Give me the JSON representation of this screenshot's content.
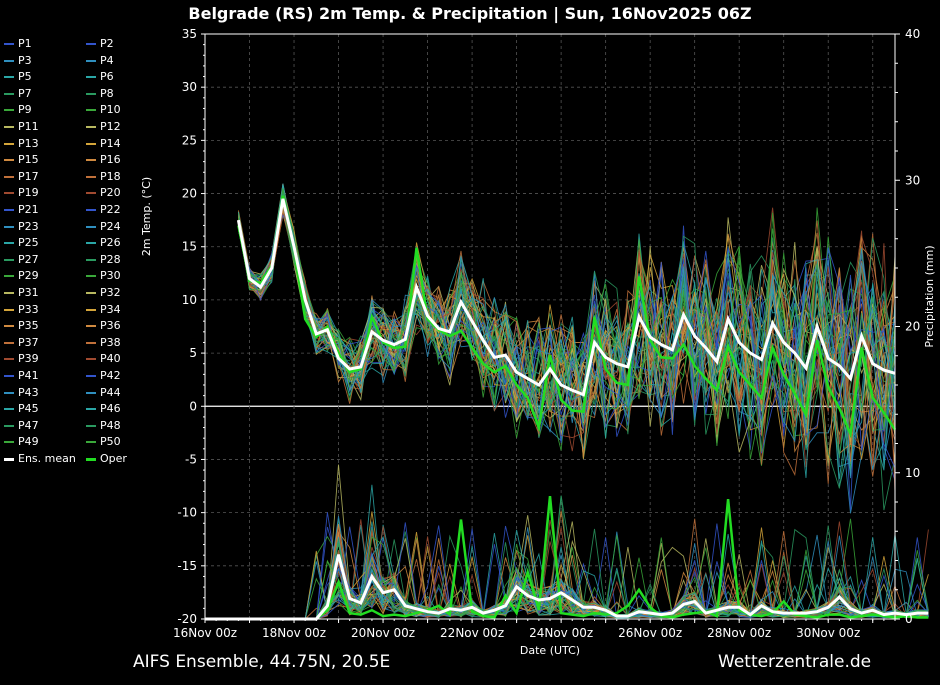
{
  "title": "Belgrade  (RS)  2m Temp. & Precipitation | Sun, 16Nov2025 06Z",
  "footer": {
    "model": "AIFS Ensemble, 44.75N, 20.5E",
    "source": "Wetterzentrale.de"
  },
  "colors": {
    "background": "#000000",
    "ens_mean": "#ffffff",
    "oper": "#22dd22",
    "zero_line": "#ffffff",
    "grid": "#555555"
  },
  "legend": {
    "members": [
      "P1",
      "P2",
      "P3",
      "P4",
      "P5",
      "P6",
      "P7",
      "P8",
      "P9",
      "P10",
      "P11",
      "P12",
      "P13",
      "P14",
      "P15",
      "P16",
      "P17",
      "P18",
      "P19",
      "P20",
      "P21",
      "P22",
      "P23",
      "P24",
      "P25",
      "P26",
      "P27",
      "P28",
      "P29",
      "P30",
      "P31",
      "P32",
      "P33",
      "P34",
      "P35",
      "P36",
      "P37",
      "P38",
      "P39",
      "P40",
      "P41",
      "P42",
      "P43",
      "P44",
      "P45",
      "P46",
      "P47",
      "P48",
      "P49",
      "P50"
    ],
    "member_colors": [
      "#3355cc",
      "#3355cc",
      "#2f8fbf",
      "#2f8fbf",
      "#2aa6a6",
      "#2aa6a6",
      "#2a9a60",
      "#2a9a60",
      "#3aa83a",
      "#3aa83a",
      "#b8b860",
      "#b8b860",
      "#d4a53a",
      "#d4a53a",
      "#d08a40",
      "#d08a40",
      "#c0703a",
      "#c0703a",
      "#a04a30",
      "#a04a30",
      "#3355cc",
      "#3355cc",
      "#2f8fbf",
      "#2f8fbf",
      "#2aa6a6",
      "#2aa6a6",
      "#2a9a60",
      "#2a9a60",
      "#3aa83a",
      "#3aa83a",
      "#b8b860",
      "#b8b860",
      "#d4a53a",
      "#d4a53a",
      "#d08a40",
      "#d08a40",
      "#c0703a",
      "#c0703a",
      "#a04a30",
      "#a04a30",
      "#3355cc",
      "#3355cc",
      "#2f8fbf",
      "#2f8fbf",
      "#2aa6a6",
      "#2aa6a6",
      "#2a9a60",
      "#2a9a60",
      "#3aa83a",
      "#3aa83a"
    ],
    "mean_label": "Ens. mean",
    "oper_label": "Oper"
  },
  "chart_data": {
    "type": "line",
    "title": "Belgrade  (RS)  2m Temp. & Precipitation | Sun, 16Nov2025 06Z",
    "xlabel": "Date (UTC)",
    "ylabel_left": "2m Temp. (°C)",
    "ylabel_right": "Precipitation (mm)",
    "ylim_left": [
      -20,
      35
    ],
    "ylim_right": [
      0,
      40
    ],
    "yticks_left": [
      "-20",
      "-15",
      "-10",
      "-5",
      "0",
      "5",
      "10",
      "15",
      "20",
      "25",
      "30",
      "35"
    ],
    "yticks_right": [
      "0",
      "10",
      "20",
      "30",
      "40"
    ],
    "x_hours_range": [
      0,
      372
    ],
    "x_step_hours": 6,
    "xtick_labels": [
      "16Nov 00z",
      "18Nov 00z",
      "20Nov 00z",
      "22Nov 00z",
      "24Nov 00z",
      "26Nov 00z",
      "28Nov 00z",
      "30Nov 00z"
    ],
    "grid": true,
    "series": [
      {
        "name": "Ens. mean 2m Temp.",
        "axis": "left",
        "start_hour": 18,
        "values": [
          17.5,
          12,
          11.2,
          13,
          19.5,
          15,
          10,
          6.8,
          7.2,
          4.5,
          3.5,
          3.7,
          7,
          6.2,
          5.8,
          6.3,
          11.2,
          8.5,
          7.3,
          7,
          9.8,
          8,
          6.2,
          4.6,
          4.8,
          3.2,
          2.6,
          2,
          3.5,
          2,
          1.5,
          1.1,
          6,
          4.6,
          4,
          3.7,
          8.4,
          6.5,
          5.8,
          5.3,
          8.6,
          6.6,
          5.5,
          4.2,
          8.2,
          6,
          5,
          4.4,
          7.8,
          6,
          5,
          3.6,
          7.5,
          4.5,
          3.8,
          2.6,
          6.6,
          4,
          3.4,
          3.1
        ]
      },
      {
        "name": "Oper 2m Temp.",
        "axis": "left",
        "start_hour": 18,
        "values": [
          17,
          11.8,
          11.6,
          13.2,
          19.8,
          14.8,
          8.2,
          6.5,
          7.5,
          5,
          3.2,
          3.5,
          8.4,
          6,
          5.5,
          5.6,
          14.9,
          8.2,
          7.2,
          6.6,
          7.1,
          5.5,
          4,
          3.2,
          3.8,
          2,
          0.8,
          -2,
          4.8,
          0.6,
          -0.4,
          -0.5,
          8.4,
          3.5,
          2.2,
          2,
          12.2,
          6.2,
          4.6,
          4.5,
          5.8,
          3.8,
          2.6,
          1.5,
          5.6,
          3.2,
          2,
          0.8,
          5.5,
          3,
          1.2,
          -0.8,
          6.2,
          1.8,
          -0.2,
          -2.6,
          5.5,
          0.8,
          -0.6,
          -2.2
        ]
      },
      {
        "name": "Ens. mean Precipitation",
        "axis": "right",
        "start_hour": 0,
        "values": [
          0,
          0,
          0,
          0,
          0,
          0,
          0,
          0,
          0,
          0,
          0,
          0.9,
          4.4,
          1.4,
          1.1,
          2.9,
          1.8,
          2,
          0.9,
          0.7,
          0.5,
          0.4,
          0.7,
          0.6,
          0.8,
          0.4,
          0.6,
          0.9,
          2.2,
          1.6,
          1.3,
          1.4,
          1.8,
          1.3,
          0.8,
          0.8,
          0.6,
          0.2,
          0.2,
          0.5,
          0.4,
          0.3,
          0.4,
          1,
          1.2,
          0.4,
          0.6,
          0.8,
          0.8,
          0.3,
          0.9,
          0.5,
          0.4,
          0.4,
          0.4,
          0.5,
          0.8,
          1.5,
          0.7,
          0.4,
          0.6,
          0.3,
          0.4,
          0.3,
          0.4,
          0.4
        ]
      },
      {
        "name": "Oper Precipitation",
        "axis": "right",
        "start_hour": 0,
        "values": [
          0,
          0,
          0,
          0,
          0,
          0,
          0,
          0,
          0,
          0,
          0,
          0.6,
          2.5,
          0.4,
          0.3,
          0.6,
          0.2,
          0.3,
          0.2,
          0.4,
          0.6,
          0.9,
          0.3,
          6.8,
          0.5,
          0.2,
          0.1,
          1.6,
          0.4,
          3.2,
          0.6,
          8.4,
          0.4,
          0.3,
          0.2,
          0.4,
          0.3,
          0.4,
          0.9,
          2,
          0.8,
          0.2,
          0.1,
          0.3,
          0.4,
          0.5,
          0.2,
          8.2,
          0.6,
          0.3,
          0.2,
          0.4,
          1.2,
          0.3,
          0.2,
          0.1,
          0.3,
          0.3,
          0.1,
          0.2,
          0.3,
          0.2,
          0.1,
          0.2,
          0.1,
          0.1
        ]
      }
    ]
  }
}
